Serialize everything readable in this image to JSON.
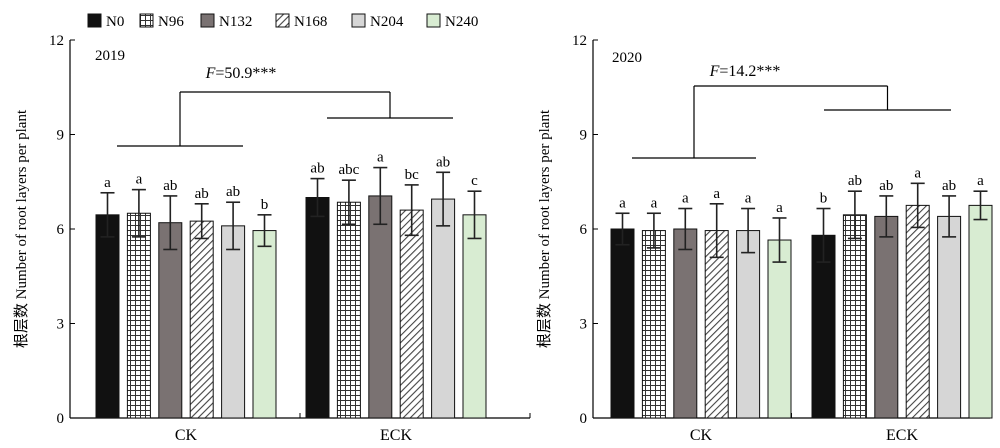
{
  "legend": {
    "items": [
      {
        "label": "N0",
        "pattern": "solid-black"
      },
      {
        "label": "N96",
        "pattern": "white-grid"
      },
      {
        "label": "N132",
        "pattern": "solid-gray"
      },
      {
        "label": "N168",
        "pattern": "diagonal-hatch"
      },
      {
        "label": "N204",
        "pattern": "light-gray"
      },
      {
        "label": "N240",
        "pattern": "light-green"
      }
    ]
  },
  "colors": {
    "N0": "#111111",
    "N96": "#ffffff",
    "N96_grid": "#333333",
    "N132": "#7a7272",
    "N168": "#ffffff",
    "N168_hatch": "#444444",
    "N204": "#d6d6d6",
    "N240": "#d8ecd2"
  },
  "chart_data": [
    {
      "type": "bar",
      "title": "2019",
      "ylabel": "根层数 Number of root layers per plant",
      "ylim": [
        0,
        12
      ],
      "yticks": [
        "0",
        "3",
        "6",
        "9",
        "12"
      ],
      "categories": [
        "CK",
        "ECK"
      ],
      "series": [
        {
          "name": "N0",
          "values": [
            6.45,
            7.0
          ],
          "errors": [
            0.7,
            0.6
          ],
          "letters": [
            "a",
            "ab"
          ]
        },
        {
          "name": "N96",
          "values": [
            6.5,
            6.85
          ],
          "errors": [
            0.75,
            0.7
          ],
          "letters": [
            "a",
            "abc"
          ]
        },
        {
          "name": "N132",
          "values": [
            6.2,
            7.05
          ],
          "errors": [
            0.85,
            0.9
          ],
          "letters": [
            "ab",
            "a"
          ]
        },
        {
          "name": "N168",
          "values": [
            6.25,
            6.6
          ],
          "errors": [
            0.55,
            0.8
          ],
          "letters": [
            "ab",
            "bc"
          ]
        },
        {
          "name": "N204",
          "values": [
            6.1,
            6.95
          ],
          "errors": [
            0.75,
            0.85
          ],
          "letters": [
            "ab",
            "ab"
          ]
        },
        {
          "name": "N240",
          "values": [
            5.95,
            6.45
          ],
          "errors": [
            0.5,
            0.75
          ],
          "letters": [
            "b",
            "c"
          ]
        }
      ],
      "annotation": {
        "label_italic": "F",
        "label_rest": "=50.9***"
      }
    },
    {
      "type": "bar",
      "title": "2020",
      "ylabel": "根层数 Number of root layers per plant",
      "ylim": [
        0,
        12
      ],
      "yticks": [
        "0",
        "3",
        "6",
        "9",
        "12"
      ],
      "categories": [
        "CK",
        "ECK"
      ],
      "series": [
        {
          "name": "N0",
          "values": [
            6.0,
            5.8
          ],
          "errors": [
            0.5,
            0.85
          ],
          "letters": [
            "a",
            "b"
          ]
        },
        {
          "name": "N96",
          "values": [
            5.95,
            6.45
          ],
          "errors": [
            0.55,
            0.75
          ],
          "letters": [
            "a",
            "ab"
          ]
        },
        {
          "name": "N132",
          "values": [
            6.0,
            6.4
          ],
          "errors": [
            0.65,
            0.65
          ],
          "letters": [
            "a",
            "ab"
          ]
        },
        {
          "name": "N168",
          "values": [
            5.95,
            6.75
          ],
          "errors": [
            0.85,
            0.7
          ],
          "letters": [
            "a",
            "a"
          ]
        },
        {
          "name": "N204",
          "values": [
            5.95,
            6.4
          ],
          "errors": [
            0.7,
            0.65
          ],
          "letters": [
            "a",
            "ab"
          ]
        },
        {
          "name": "N240",
          "values": [
            5.65,
            6.75
          ],
          "errors": [
            0.7,
            0.45
          ],
          "letters": [
            "a",
            "a"
          ]
        }
      ],
      "annotation": {
        "label_italic": "F",
        "label_rest": "=14.2***"
      }
    }
  ]
}
